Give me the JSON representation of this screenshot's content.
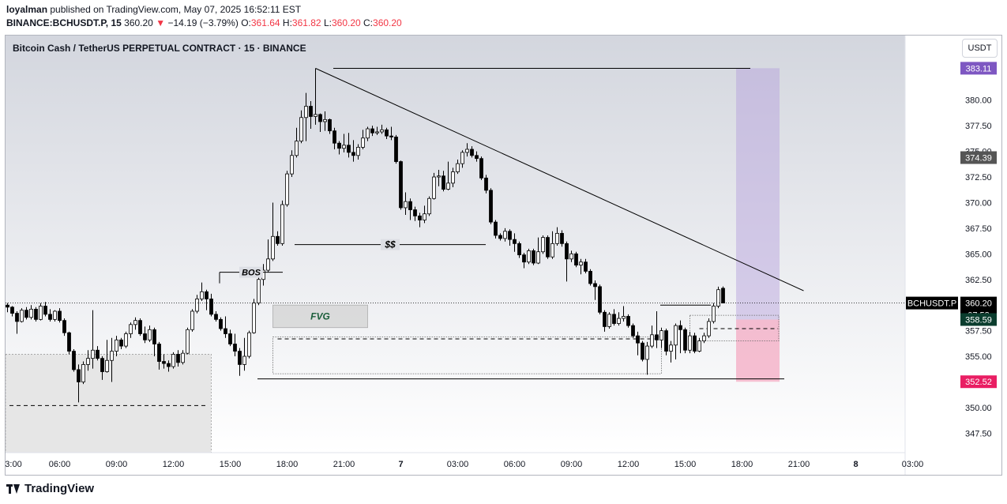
{
  "publisher": {
    "user": "loyalman",
    "text": "published on TradingView.com, May 07, 2025 16:52:11 EST"
  },
  "symbol_line": {
    "symbol": "BINANCE:BCHUSDT.P, 15",
    "last": "360.20",
    "change": "−14.19 (−3.79%)",
    "o_label": "O:",
    "o": "361.64",
    "h_label": "H:",
    "h": "361.82",
    "l_label": "L:",
    "l": "360.20",
    "c_label": "C:",
    "c": "360.20"
  },
  "currency_button": "USDT",
  "footer_brand": "TradingView",
  "colors": {
    "up": "#ffffff",
    "down": "#000000",
    "long_zone": "#b39ddb",
    "short_zone": "#f48fb1",
    "fvg": "#d7d7d7",
    "target_badge": "#7e57c2",
    "stop_badge": "#e91e63",
    "entry_badge": "#0b3d2e",
    "bg_top": "#d3d6de",
    "bg_bottom": "#ffffff"
  },
  "chart_data": {
    "type": "candlestick",
    "title": "Bitcoin Cash / TetherUS PERPETUAL CONTRACT · 15 · BINANCE",
    "y_ticks": [
      "380.00",
      "377.50",
      "375.00",
      "372.50",
      "370.00",
      "367.50",
      "365.00",
      "362.50",
      "360.00",
      "357.50",
      "355.00",
      "352.50",
      "350.00",
      "347.50"
    ],
    "y_tick_values": [
      380,
      377.5,
      375,
      372.5,
      370,
      367.5,
      365,
      362.5,
      360,
      357.5,
      355,
      352.5,
      350,
      347.5
    ],
    "ylim": [
      345.6,
      386.3
    ],
    "x_ticks": [
      {
        "label": "3:00",
        "bar": 0
      },
      {
        "label": "06:00",
        "bar": 11
      },
      {
        "label": "09:00",
        "bar": 23
      },
      {
        "label": "12:00",
        "bar": 35
      },
      {
        "label": "15:00",
        "bar": 47
      },
      {
        "label": "18:00",
        "bar": 59
      },
      {
        "label": "21:00",
        "bar": 71
      },
      {
        "label": "7",
        "bar": 83,
        "bold": true
      },
      {
        "label": "03:00",
        "bar": 95
      },
      {
        "label": "06:00",
        "bar": 107
      },
      {
        "label": "09:00",
        "bar": 119
      },
      {
        "label": "12:00",
        "bar": 131
      },
      {
        "label": "15:00",
        "bar": 143
      },
      {
        "label": "18:00",
        "bar": 155
      },
      {
        "label": "21:00",
        "bar": 167
      },
      {
        "label": "8",
        "bar": 179,
        "bold": true
      },
      {
        "label": "03:00",
        "bar": 191
      }
    ],
    "candles": [
      [
        360,
        359.8,
        360.2,
        359.3
      ],
      [
        359.8,
        359.2,
        359.9,
        358.9
      ],
      [
        359.2,
        358.4,
        359.4,
        357.2
      ],
      [
        358.4,
        359.5,
        359.7,
        358.3
      ],
      [
        359.5,
        358.8,
        359.8,
        358.6
      ],
      [
        358.8,
        359.6,
        360.0,
        358.6
      ],
      [
        359.6,
        358.6,
        359.8,
        358.4
      ],
      [
        358.6,
        359.9,
        360.2,
        358.5
      ],
      [
        359.9,
        359.1,
        360.3,
        358.9
      ],
      [
        359.1,
        358.6,
        359.6,
        358.4
      ],
      [
        358.6,
        359.4,
        359.5,
        358.4
      ],
      [
        359.4,
        358.5,
        359.7,
        358.3
      ],
      [
        358.5,
        357.3,
        358.7,
        357.0
      ],
      [
        357.3,
        355.5,
        357.4,
        355.2
      ],
      [
        355.5,
        353.7,
        355.7,
        353.5
      ],
      [
        353.7,
        352.5,
        354.2,
        350.5
      ],
      [
        352.5,
        354.2,
        354.5,
        352.3
      ],
      [
        354.2,
        354.8,
        355.6,
        353.6
      ],
      [
        354.8,
        355.6,
        359.5,
        353.8
      ],
      [
        355.6,
        354.8,
        356.0,
        354.6
      ],
      [
        354.8,
        353.5,
        355.0,
        352.7
      ],
      [
        353.5,
        354.6,
        356.6,
        353.4
      ],
      [
        354.6,
        355.5,
        356.8,
        352.5
      ],
      [
        355.5,
        356.6,
        357.0,
        355.0
      ],
      [
        356.6,
        356.0,
        356.8,
        355.7
      ],
      [
        356.0,
        357.2,
        357.4,
        355.8
      ],
      [
        357.2,
        358.1,
        358.3,
        356.8
      ],
      [
        358.1,
        358.5,
        358.8,
        357.6
      ],
      [
        358.5,
        357.2,
        358.7,
        357.0
      ],
      [
        357.2,
        356.6,
        357.9,
        356.3
      ],
      [
        356.6,
        357.6,
        358.0,
        356.4
      ],
      [
        357.6,
        356.2,
        357.8,
        355.0
      ],
      [
        356.2,
        354.5,
        356.4,
        353.7
      ],
      [
        354.5,
        354.3,
        355.2,
        353.8
      ],
      [
        354.3,
        354.0,
        354.6,
        353.5
      ],
      [
        354.0,
        355.2,
        355.4,
        353.8
      ],
      [
        355.2,
        354.4,
        355.6,
        354.0
      ],
      [
        354.4,
        355.3,
        355.6,
        354.2
      ],
      [
        355.3,
        357.6,
        357.8,
        355.2
      ],
      [
        357.6,
        359.4,
        359.6,
        357.4
      ],
      [
        359.4,
        360.6,
        361.0,
        359.2
      ],
      [
        360.6,
        361.3,
        362.2,
        360.4
      ],
      [
        361.3,
        360.6,
        361.5,
        359.5
      ],
      [
        360.6,
        359.1,
        361.1,
        358.9
      ],
      [
        359.1,
        358.6,
        359.4,
        358.4
      ],
      [
        358.6,
        357.7,
        358.8,
        357.5
      ],
      [
        357.7,
        357.2,
        358.9,
        356.8
      ],
      [
        357.2,
        356.2,
        357.6,
        356.0
      ],
      [
        356.2,
        355.5,
        357.2,
        355.0
      ],
      [
        355.5,
        354.2,
        355.8,
        353.1
      ],
      [
        354.2,
        355.0,
        356.8,
        353.6
      ],
      [
        355.0,
        357.3,
        357.5,
        354.8
      ],
      [
        357.3,
        360.2,
        360.6,
        357.2
      ],
      [
        360.2,
        362.5,
        363.2,
        360.0
      ],
      [
        362.5,
        363.4,
        364.0,
        361.9
      ],
      [
        363.4,
        364.5,
        366.4,
        363.2
      ],
      [
        364.5,
        366.7,
        370.0,
        364.3
      ],
      [
        366.7,
        366.0,
        367.2,
        365.8
      ],
      [
        366.0,
        369.8,
        370.2,
        365.8
      ],
      [
        369.8,
        372.8,
        373.1,
        369.6
      ],
      [
        372.8,
        374.6,
        375.1,
        372.5
      ],
      [
        374.6,
        376.0,
        377.3,
        374.4
      ],
      [
        376.0,
        378.3,
        379.0,
        375.8
      ],
      [
        378.3,
        379.4,
        380.7,
        376.0
      ],
      [
        379.4,
        378.4,
        379.9,
        377.2
      ],
      [
        378.4,
        378.6,
        383.1,
        377.6
      ],
      [
        378.6,
        377.9,
        378.7,
        376.9
      ],
      [
        377.9,
        378.1,
        378.9,
        377.0
      ],
      [
        378.1,
        377.0,
        378.2,
        376.7
      ],
      [
        377.0,
        375.8,
        377.3,
        375.2
      ],
      [
        375.8,
        375.3,
        376.0,
        374.7
      ],
      [
        375.3,
        375.6,
        376.7,
        374.9
      ],
      [
        375.6,
        374.9,
        376.8,
        374.4
      ],
      [
        374.9,
        374.6,
        376.1,
        374.0
      ],
      [
        374.6,
        375.4,
        375.7,
        374.2
      ],
      [
        375.4,
        376.3,
        377.1,
        375.2
      ],
      [
        376.3,
        377.2,
        377.4,
        376.0
      ],
      [
        377.2,
        376.8,
        377.5,
        376.5
      ],
      [
        376.8,
        376.9,
        377.4,
        376.6
      ],
      [
        376.9,
        377.1,
        377.6,
        376.7
      ],
      [
        377.1,
        376.5,
        377.3,
        376.2
      ],
      [
        376.5,
        376.4,
        377.4,
        376.1
      ],
      [
        376.4,
        374.0,
        376.6,
        373.8
      ],
      [
        374.0,
        369.5,
        374.1,
        369.3
      ],
      [
        369.5,
        370.1,
        371.0,
        368.8
      ],
      [
        370.1,
        369.3,
        370.4,
        368.3
      ],
      [
        369.3,
        368.7,
        369.6,
        368.2
      ],
      [
        368.7,
        368.3,
        369.0,
        367.6
      ],
      [
        368.3,
        368.9,
        369.7,
        368.0
      ],
      [
        368.9,
        370.4,
        370.6,
        368.7
      ],
      [
        370.4,
        372.5,
        372.9,
        370.3
      ],
      [
        372.5,
        372.6,
        373.2,
        371.6
      ],
      [
        372.6,
        371.3,
        373.1,
        371.1
      ],
      [
        371.3,
        371.9,
        374.0,
        371.2
      ],
      [
        371.9,
        373.0,
        373.4,
        371.5
      ],
      [
        373.0,
        373.8,
        374.2,
        372.8
      ],
      [
        373.8,
        374.9,
        375.1,
        373.4
      ],
      [
        374.9,
        375.2,
        375.8,
        374.5
      ],
      [
        375.2,
        374.6,
        375.5,
        374.4
      ],
      [
        374.6,
        374.3,
        375.0,
        374.0
      ],
      [
        374.3,
        372.4,
        374.5,
        372.2
      ],
      [
        372.4,
        371.2,
        372.7,
        370.9
      ],
      [
        371.2,
        368.1,
        371.4,
        367.9
      ],
      [
        368.1,
        366.8,
        368.3,
        366.5
      ],
      [
        366.8,
        366.5,
        367.0,
        366.3
      ],
      [
        366.5,
        367.2,
        367.5,
        366.2
      ],
      [
        367.2,
        366.4,
        367.4,
        365.8
      ],
      [
        366.4,
        366.0,
        367.0,
        365.2
      ],
      [
        366.0,
        364.9,
        366.2,
        364.6
      ],
      [
        364.9,
        364.2,
        365.1,
        363.6
      ],
      [
        364.2,
        365.3,
        365.5,
        364.0
      ],
      [
        365.3,
        364.1,
        365.5,
        363.9
      ],
      [
        364.1,
        365.2,
        366.6,
        364.0
      ],
      [
        365.2,
        366.6,
        366.8,
        365.0
      ],
      [
        366.6,
        364.7,
        366.8,
        364.5
      ],
      [
        364.7,
        366.0,
        367.2,
        364.5
      ],
      [
        366.0,
        367.0,
        367.6,
        365.8
      ],
      [
        367.0,
        366.0,
        367.3,
        365.7
      ],
      [
        366.0,
        364.5,
        366.2,
        362.3
      ],
      [
        364.5,
        365.0,
        365.3,
        364.2
      ],
      [
        365.0,
        363.9,
        365.2,
        363.7
      ],
      [
        363.9,
        364.2,
        364.5,
        363.0
      ],
      [
        364.2,
        363.3,
        364.5,
        363.1
      ],
      [
        363.3,
        362.1,
        363.5,
        361.9
      ],
      [
        362.1,
        361.8,
        362.4,
        360.5
      ],
      [
        361.8,
        359.3,
        362.0,
        359.1
      ],
      [
        359.3,
        357.9,
        359.5,
        357.4
      ],
      [
        357.9,
        359.1,
        359.3,
        357.7
      ],
      [
        359.1,
        358.2,
        359.6,
        358.0
      ],
      [
        358.2,
        358.7,
        359.3,
        358.0
      ],
      [
        358.7,
        358.9,
        359.9,
        358.4
      ],
      [
        358.9,
        358.0,
        359.1,
        357.8
      ],
      [
        358.0,
        357.0,
        358.2,
        356.8
      ],
      [
        357.0,
        356.3,
        357.4,
        355.1
      ],
      [
        356.3,
        354.7,
        356.5,
        354.5
      ],
      [
        354.7,
        356.0,
        356.4,
        353.2
      ],
      [
        356.0,
        357.1,
        358.0,
        355.8
      ],
      [
        357.1,
        356.6,
        359.4,
        355.8
      ],
      [
        356.6,
        357.5,
        357.8,
        355.8
      ],
      [
        357.5,
        355.5,
        357.7,
        355.1
      ],
      [
        355.5,
        356.1,
        356.5,
        354.4
      ],
      [
        356.1,
        358.0,
        358.2,
        354.7
      ],
      [
        358.0,
        357.6,
        358.5,
        355.3
      ],
      [
        357.6,
        355.6,
        357.8,
        355.3
      ],
      [
        355.6,
        357.0,
        357.4,
        355.3
      ],
      [
        357.0,
        355.5,
        357.3,
        355.3
      ],
      [
        355.5,
        356.5,
        356.8,
        355.4
      ],
      [
        356.5,
        357.0,
        357.3,
        356.3
      ],
      [
        357.0,
        358.4,
        358.7,
        356.8
      ],
      [
        358.4,
        359.9,
        360.2,
        358.2
      ],
      [
        359.9,
        361.5,
        361.8,
        359.7
      ],
      [
        361.64,
        360.2,
        361.82,
        360.2
      ]
    ],
    "annotations": {
      "bos": "BOS",
      "liquidity": "$$",
      "fvg": "FVG",
      "symbol_badge": "BCHUSDT.P",
      "price_badge": "360.20",
      "timer_badge": "07:58",
      "entry_badge": "358.59",
      "target_badge": "383.11",
      "stop_badge": "352.52",
      "top_line_badge": "374.39",
      "trendline": [
        {
          "bar": 65,
          "price": 383.1
        },
        {
          "bar": 168,
          "price": 361.4
        }
      ],
      "top_level": 383.1,
      "bos_level": 363.2,
      "liquidity_level": 365.9,
      "low_level": 352.8,
      "entry": 358.59,
      "target": 383.11,
      "stop": 352.52,
      "fvg_zone": [
        357.8,
        360.0
      ],
      "lower_entry_box": [
        353.3,
        356.9
      ],
      "left_box": [
        345.6,
        355.2
      ],
      "left_dash": 350.2,
      "mid_dash": 356.7,
      "right_dash_box": [
        356.5,
        359.0
      ]
    }
  }
}
